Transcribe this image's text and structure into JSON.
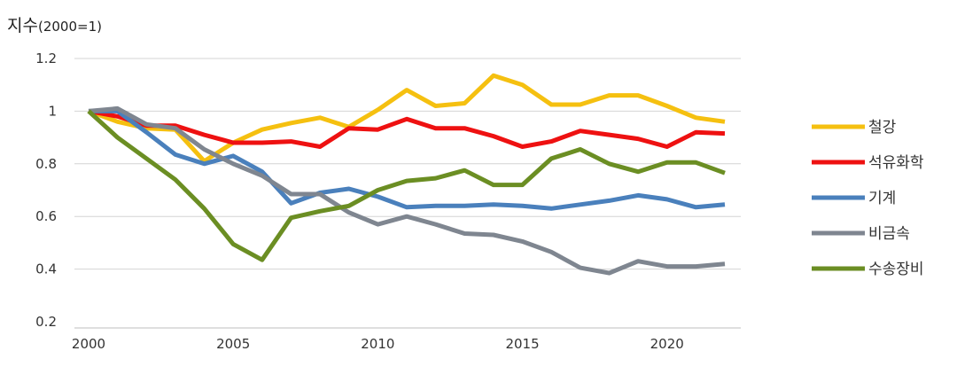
{
  "chart_data": {
    "type": "line",
    "title": "",
    "ylabel": "지수",
    "ylabel_unit": "(2000=1)",
    "xlabel": "",
    "ylim": [
      0.2,
      1.2
    ],
    "yticks": [
      "0.2",
      "0.4",
      "0.6",
      "0.8",
      "1",
      "1.2"
    ],
    "xlim": [
      2000,
      2022
    ],
    "xticks": [
      "2000",
      "2005",
      "2010",
      "2015",
      "2020"
    ],
    "grid": "horizontal",
    "legend_position": "right",
    "x": [
      2000,
      2001,
      2002,
      2003,
      2004,
      2005,
      2006,
      2007,
      2008,
      2009,
      2010,
      2011,
      2012,
      2013,
      2014,
      2015,
      2016,
      2017,
      2018,
      2019,
      2020,
      2021,
      2022
    ],
    "series": [
      {
        "name": "철강",
        "color": "#F5C010",
        "values": [
          1.0,
          0.96,
          0.935,
          0.93,
          0.81,
          0.88,
          0.93,
          0.955,
          0.975,
          0.94,
          1.005,
          1.08,
          1.02,
          1.03,
          1.135,
          1.1,
          1.025,
          1.025,
          1.06,
          1.06,
          1.02,
          0.975,
          0.96
        ]
      },
      {
        "name": "석유화학",
        "color": "#EE1111",
        "values": [
          1.0,
          0.98,
          0.945,
          0.945,
          0.91,
          0.88,
          0.88,
          0.885,
          0.865,
          0.935,
          0.93,
          0.97,
          0.935,
          0.935,
          0.905,
          0.865,
          0.885,
          0.925,
          0.91,
          0.895,
          0.865,
          0.92,
          0.915
        ]
      },
      {
        "name": "기계",
        "color": "#4A80BC",
        "values": [
          1.0,
          1.0,
          0.92,
          0.835,
          0.8,
          0.83,
          0.77,
          0.65,
          0.69,
          0.705,
          0.675,
          0.635,
          0.64,
          0.64,
          0.645,
          0.64,
          0.63,
          0.645,
          0.66,
          0.68,
          0.665,
          0.635,
          0.645
        ]
      },
      {
        "name": "비금속",
        "color": "#7F8690",
        "values": [
          1.0,
          1.01,
          0.95,
          0.935,
          0.855,
          0.8,
          0.755,
          0.685,
          0.685,
          0.615,
          0.57,
          0.6,
          0.57,
          0.535,
          0.53,
          0.505,
          0.465,
          0.405,
          0.385,
          0.43,
          0.41,
          0.41,
          0.42
        ]
      },
      {
        "name": "수송장비",
        "color": "#6B8E23",
        "values": [
          1.0,
          0.9,
          0.82,
          0.74,
          0.63,
          0.495,
          0.435,
          0.595,
          0.62,
          0.64,
          0.7,
          0.735,
          0.745,
          0.775,
          0.72,
          0.72,
          0.82,
          0.855,
          0.8,
          0.77,
          0.805,
          0.805,
          0.765
        ]
      }
    ]
  }
}
